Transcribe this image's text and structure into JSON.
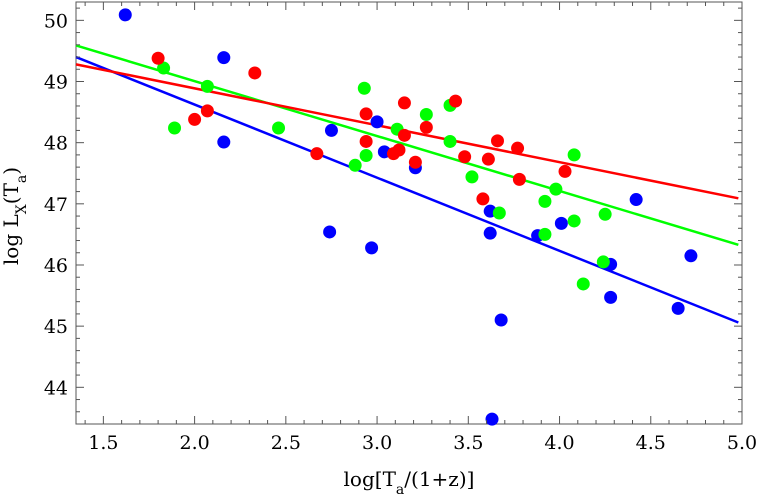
{
  "chart_data": {
    "type": "scatter",
    "title": "",
    "xlabel": "log[T_a/(1+z)]",
    "ylabel": "log L_X(T_a)",
    "xlim": [
      1.35,
      5.0
    ],
    "ylim": [
      43.4,
      50.3
    ],
    "xticks": [
      1.5,
      2.0,
      2.5,
      3.0,
      3.5,
      4.0,
      4.5,
      5.0
    ],
    "xtick_labels": [
      "1.5",
      "2.0",
      "2.5",
      "3.0",
      "3.5",
      "4.0",
      "4.5",
      "5.0"
    ],
    "yticks": [
      44,
      45,
      46,
      47,
      48,
      49,
      50
    ],
    "ytick_labels": [
      "44",
      "45",
      "46",
      "47",
      "48",
      "49",
      "50"
    ],
    "grid": false,
    "legend": "none",
    "series": [
      {
        "color": "#0000ff",
        "points": [
          [
            1.62,
            50.09
          ],
          [
            2.16,
            49.39
          ],
          [
            2.16,
            48.01
          ],
          [
            2.75,
            48.2
          ],
          [
            2.74,
            46.54
          ],
          [
            2.97,
            46.28
          ],
          [
            3.0,
            48.34
          ],
          [
            3.04,
            47.85
          ],
          [
            3.21,
            47.59
          ],
          [
            3.62,
            46.88
          ],
          [
            3.62,
            46.52
          ],
          [
            3.68,
            45.1
          ],
          [
            3.63,
            43.48
          ],
          [
            3.88,
            46.48
          ],
          [
            4.01,
            46.68
          ],
          [
            4.28,
            46.01
          ],
          [
            4.28,
            45.47
          ],
          [
            4.42,
            47.07
          ],
          [
            4.65,
            45.29
          ],
          [
            4.72,
            46.15
          ]
        ],
        "fit": {
          "x": [
            1.35,
            4.98
          ],
          "y": [
            49.4,
            45.06
          ]
        }
      },
      {
        "color": "#00ff00",
        "points": [
          [
            1.83,
            49.22
          ],
          [
            1.89,
            48.24
          ],
          [
            2.07,
            48.92
          ],
          [
            2.46,
            48.24
          ],
          [
            2.88,
            47.63
          ],
          [
            2.93,
            48.89
          ],
          [
            2.94,
            47.79
          ],
          [
            3.11,
            48.22
          ],
          [
            3.27,
            48.46
          ],
          [
            3.4,
            48.61
          ],
          [
            3.4,
            48.02
          ],
          [
            3.52,
            47.44
          ],
          [
            3.67,
            46.85
          ],
          [
            3.92,
            47.04
          ],
          [
            3.92,
            46.5
          ],
          [
            3.98,
            47.24
          ],
          [
            4.08,
            46.72
          ],
          [
            4.08,
            47.8
          ],
          [
            4.13,
            45.69
          ],
          [
            4.24,
            46.05
          ],
          [
            4.25,
            46.83
          ]
        ],
        "fit": {
          "x": [
            1.35,
            4.98
          ],
          "y": [
            49.59,
            46.33
          ]
        }
      },
      {
        "color": "#ff0000",
        "points": [
          [
            1.8,
            49.38
          ],
          [
            2.0,
            48.38
          ],
          [
            2.07,
            48.52
          ],
          [
            2.33,
            49.14
          ],
          [
            2.67,
            47.82
          ],
          [
            2.94,
            48.47
          ],
          [
            2.94,
            48.02
          ],
          [
            3.09,
            47.82
          ],
          [
            3.12,
            47.88
          ],
          [
            3.15,
            48.65
          ],
          [
            3.15,
            48.12
          ],
          [
            3.21,
            47.68
          ],
          [
            3.27,
            48.25
          ],
          [
            3.43,
            48.68
          ],
          [
            3.48,
            47.77
          ],
          [
            3.58,
            47.08
          ],
          [
            3.61,
            47.73
          ],
          [
            3.66,
            48.03
          ],
          [
            3.77,
            47.91
          ],
          [
            3.78,
            47.4
          ],
          [
            4.03,
            47.53
          ]
        ],
        "fit": {
          "x": [
            1.35,
            4.98
          ],
          "y": [
            49.28,
            47.09
          ]
        }
      }
    ]
  }
}
